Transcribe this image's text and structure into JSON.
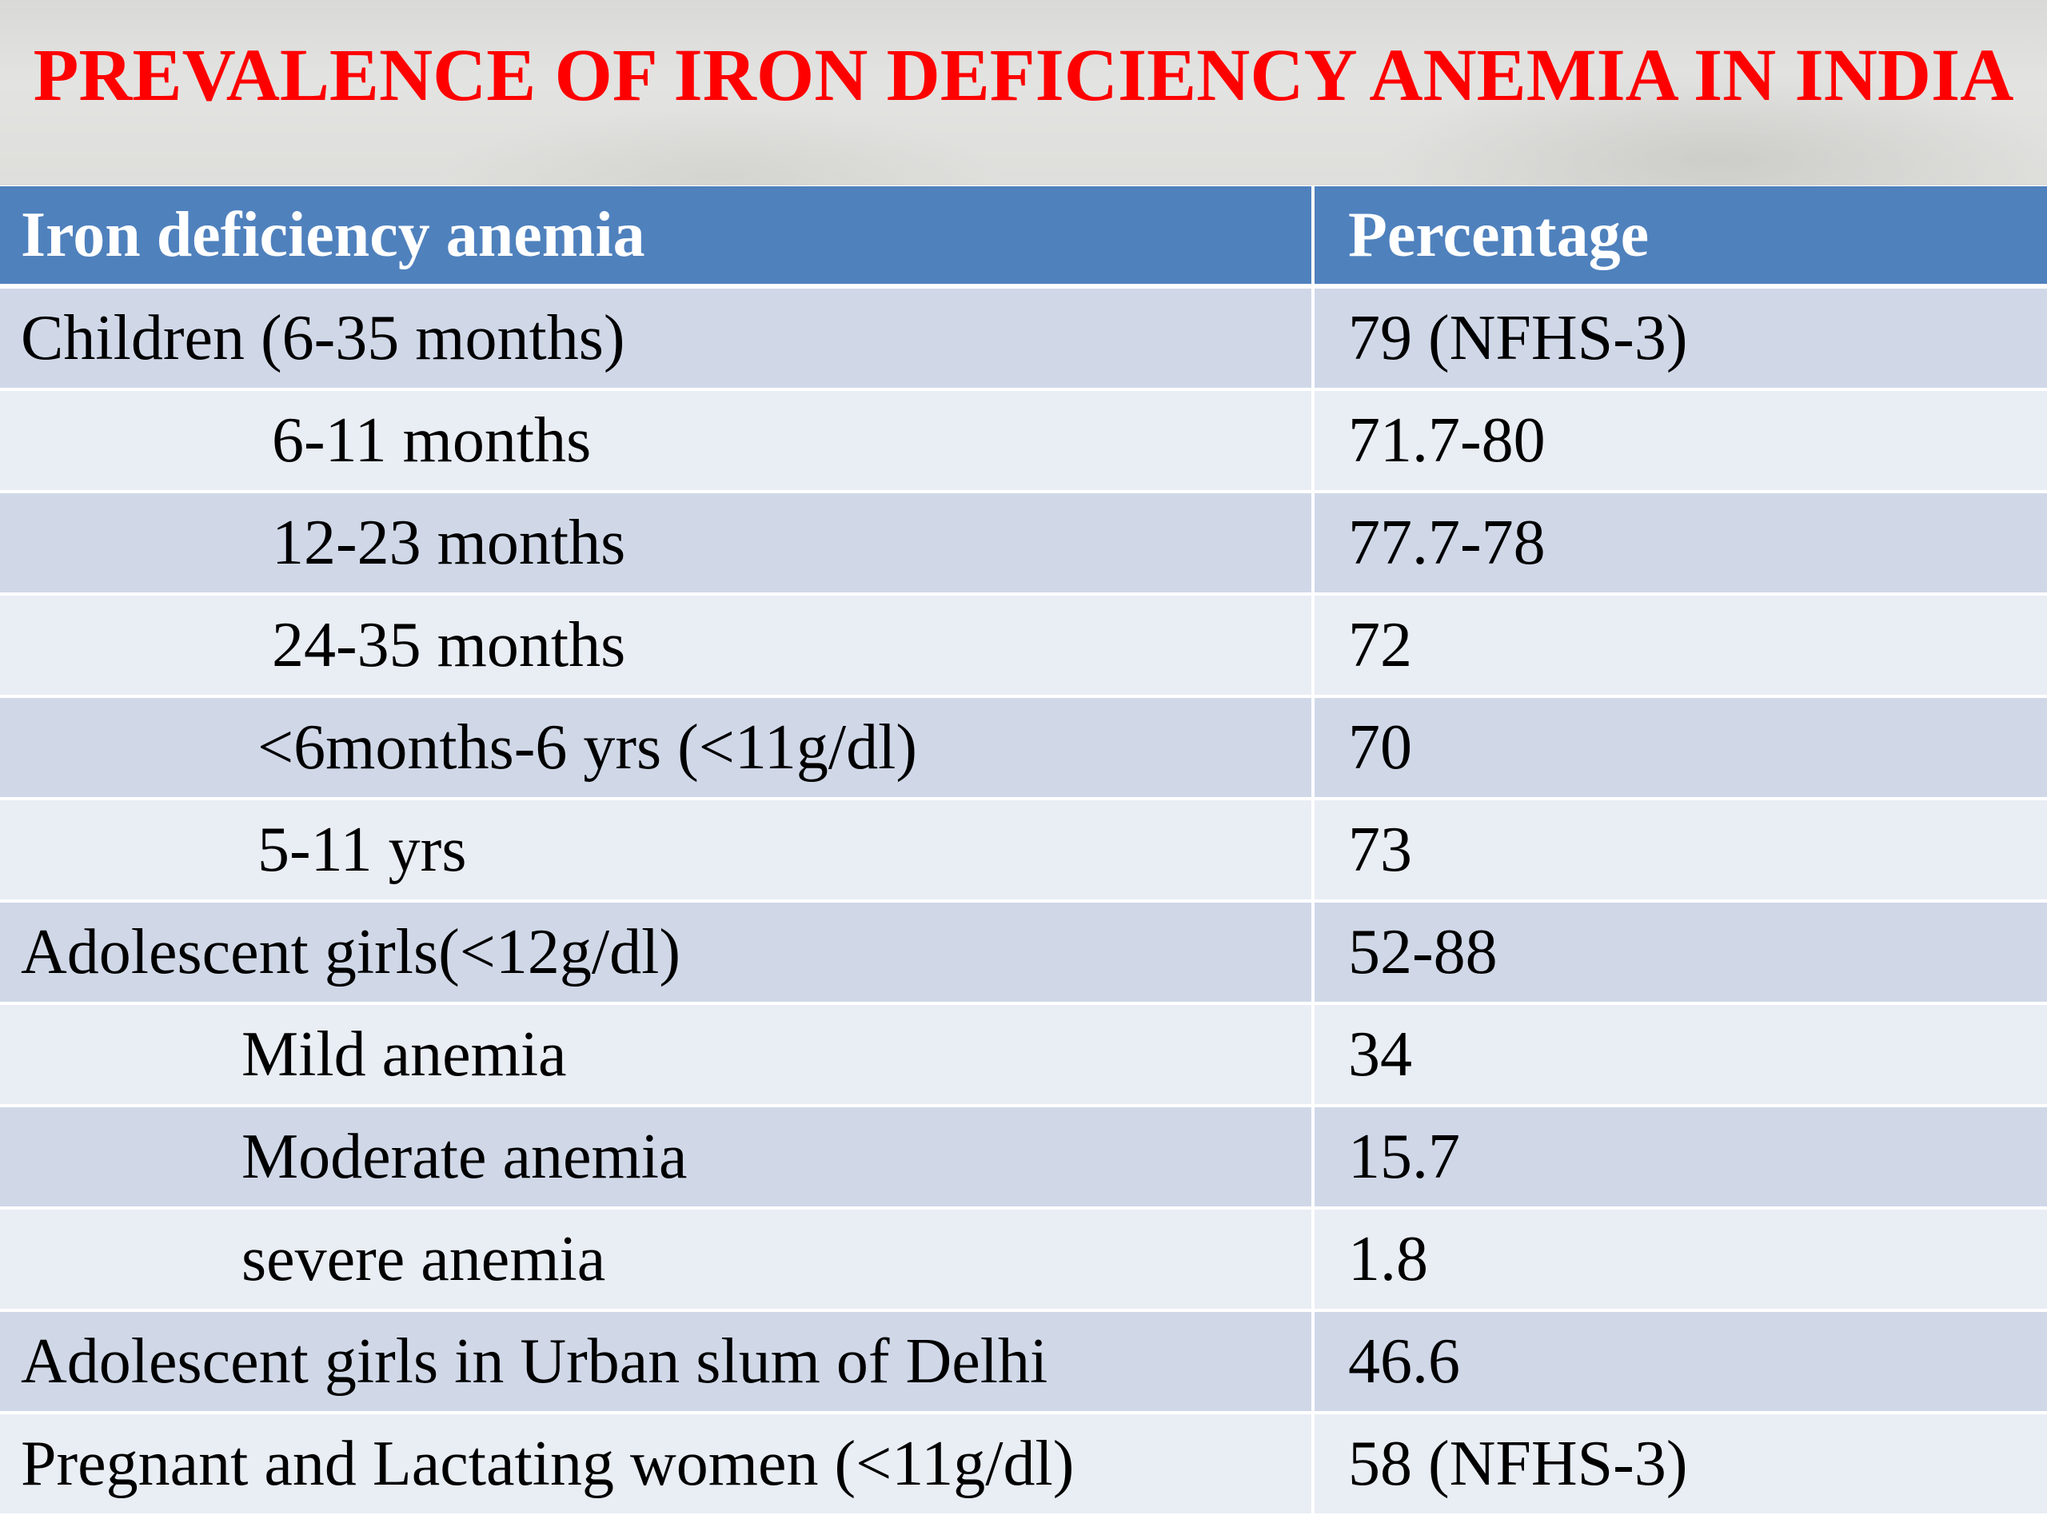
{
  "title": "PREVALENCE OF IRON DEFICIENCY ANEMIA IN INDIA",
  "table": {
    "headers": [
      "Iron deficiency anemia",
      "Percentage"
    ],
    "rows": [
      {
        "label": "Children (6-35 months)",
        "value": "79  (NFHS-3)"
      },
      {
        "label": "6-11 months",
        "value": "71.7-80"
      },
      {
        "label": "12-23 months",
        "value": "77.7-78"
      },
      {
        "label": "24-35 months",
        "value": "72"
      },
      {
        "label": "<6months-6 yrs (<11g/dl)",
        "value": "70"
      },
      {
        "label": "5-11 yrs",
        "value": "73"
      },
      {
        "label": "Adolescent girls(<12g/dl)",
        "value": "52-88"
      },
      {
        "label": "Mild anemia",
        "value": "34"
      },
      {
        "label": "Moderate anemia",
        "value": "15.7"
      },
      {
        "label": "severe anemia",
        "value": "1.8"
      },
      {
        "label": "Adolescent girls in Urban slum of Delhi",
        "value": "46.6"
      },
      {
        "label": "Pregnant and Lactating women (<11g/dl)",
        "value": "58 (NFHS-3)"
      }
    ]
  },
  "colors": {
    "title": "#ff0000",
    "header_bg": "#4f81bd",
    "row_odd": "#d0d8e8",
    "row_even": "#e9edf4"
  }
}
